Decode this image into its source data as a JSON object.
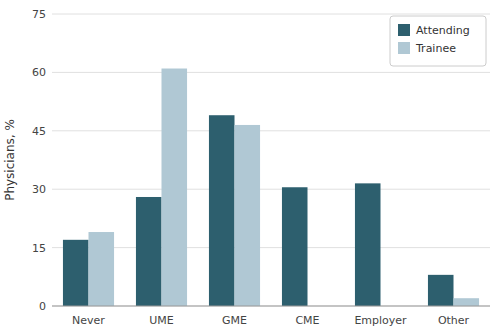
{
  "chart_data": {
    "type": "bar",
    "categories": [
      "Never",
      "UME",
      "GME",
      "CME",
      "Employer",
      "Other"
    ],
    "series": [
      {
        "name": "Attending",
        "color": "#2d5f6e",
        "values": [
          17,
          28,
          49,
          30.5,
          31.5,
          8
        ]
      },
      {
        "name": "Trainee",
        "color": "#b0c8d4",
        "values": [
          19,
          61,
          46.5,
          0,
          0,
          2
        ]
      }
    ],
    "ylabel": "Physicians, %",
    "ylim": [
      0,
      75
    ],
    "yticks": [
      0,
      15,
      30,
      45,
      60,
      75
    ],
    "grid": true,
    "legend": "upper right"
  }
}
